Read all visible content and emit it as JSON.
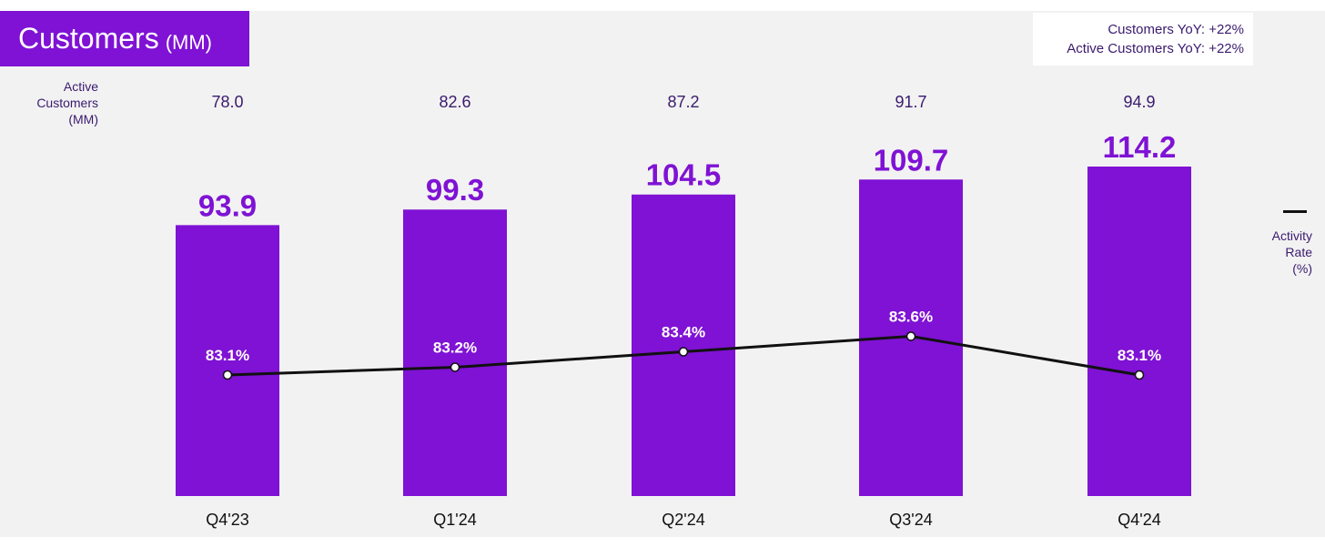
{
  "title": {
    "main": "Customers",
    "unit": "(MM)"
  },
  "yoy": {
    "customers": "Customers YoY: +22%",
    "active": "Active Customers YoY: +22%"
  },
  "active_label": [
    "Active",
    "Customers",
    "(MM)"
  ],
  "activity_label": [
    "Activity",
    "Rate",
    "(%)"
  ],
  "colors": {
    "bar": "#7f12d4",
    "line": "#111111",
    "background": "#f2f2f2"
  },
  "chart_data": {
    "type": "bar",
    "title": "Customers (MM)",
    "categories": [
      "Q4'23",
      "Q1'24",
      "Q2'24",
      "Q3'24",
      "Q4'24"
    ],
    "series": [
      {
        "name": "Customers (MM)",
        "type": "bar",
        "values": [
          93.9,
          99.3,
          104.5,
          109.7,
          114.2
        ],
        "labels": [
          "93.9",
          "99.3",
          "104.5",
          "109.7",
          "114.2"
        ]
      },
      {
        "name": "Activity Rate (%)",
        "type": "line",
        "values": [
          83.1,
          83.2,
          83.4,
          83.6,
          83.1
        ],
        "labels": [
          "83.1%",
          "83.2%",
          "83.4%",
          "83.6%",
          "83.1%"
        ]
      },
      {
        "name": "Active Customers (MM)",
        "type": "text",
        "values": [
          78.0,
          82.6,
          87.2,
          91.7,
          94.9
        ],
        "labels": [
          "78.0",
          "82.6",
          "87.2",
          "91.7",
          "94.9"
        ]
      }
    ],
    "xlabel": "",
    "ylabel": ""
  }
}
